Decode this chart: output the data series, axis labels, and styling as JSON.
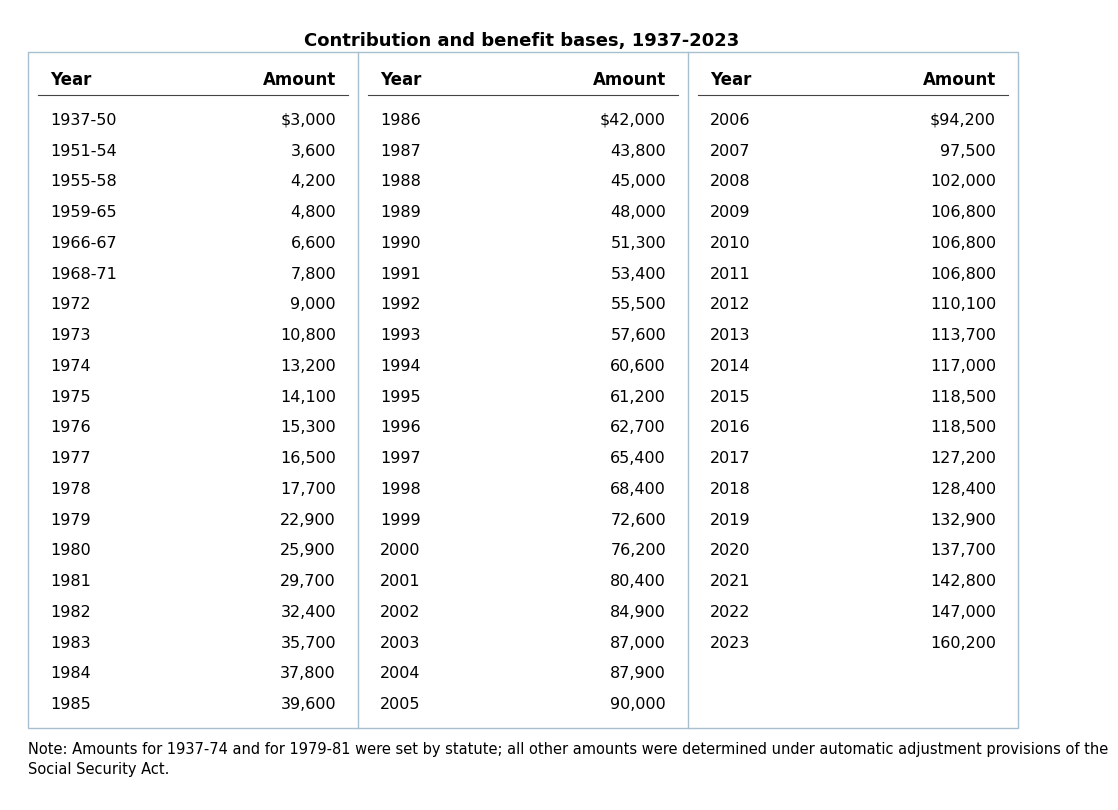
{
  "title": "Contribution and benefit bases, 1937-2023",
  "note_line1": "Note: Amounts for 1937-74 and for 1979-81 were set by statute; all other amounts were determined under automatic adjustment provisions of the",
  "note_line2": "Social Security Act.",
  "col1": {
    "years": [
      "1937-50",
      "1951-54",
      "1955-58",
      "1959-65",
      "1966-67",
      "1968-71",
      "1972",
      "1973",
      "1974",
      "1975",
      "1976",
      "1977",
      "1978",
      "1979",
      "1980",
      "1981",
      "1982",
      "1983",
      "1984",
      "1985"
    ],
    "amounts": [
      "$3,000",
      "3,600",
      "4,200",
      "4,800",
      "6,600",
      "7,800",
      "9,000",
      "10,800",
      "13,200",
      "14,100",
      "15,300",
      "16,500",
      "17,700",
      "22,900",
      "25,900",
      "29,700",
      "32,400",
      "35,700",
      "37,800",
      "39,600"
    ]
  },
  "col2": {
    "years": [
      "1986",
      "1987",
      "1988",
      "1989",
      "1990",
      "1991",
      "1992",
      "1993",
      "1994",
      "1995",
      "1996",
      "1997",
      "1998",
      "1999",
      "2000",
      "2001",
      "2002",
      "2003",
      "2004",
      "2005"
    ],
    "amounts": [
      "$42,000",
      "43,800",
      "45,000",
      "48,000",
      "51,300",
      "53,400",
      "55,500",
      "57,600",
      "60,600",
      "61,200",
      "62,700",
      "65,400",
      "68,400",
      "72,600",
      "76,200",
      "80,400",
      "84,900",
      "87,000",
      "87,900",
      "90,000"
    ]
  },
  "col3": {
    "years": [
      "2006",
      "2007",
      "2008",
      "2009",
      "2010",
      "2011",
      "2012",
      "2013",
      "2014",
      "2015",
      "2016",
      "2017",
      "2018",
      "2019",
      "2020",
      "2021",
      "2022",
      "2023"
    ],
    "amounts": [
      "$94,200",
      "97,500",
      "102,000",
      "106,800",
      "106,800",
      "106,800",
      "110,100",
      "113,700",
      "117,000",
      "118,500",
      "118,500",
      "127,200",
      "128,400",
      "132,900",
      "137,700",
      "142,800",
      "147,000",
      "160,200"
    ]
  },
  "bg_color": "#ffffff",
  "border_color": "#a8bfd0",
  "header_color": "#000000",
  "text_color": "#000000",
  "title_fontsize": 13,
  "header_fontsize": 12,
  "data_fontsize": 11.5,
  "note_fontsize": 10.5
}
